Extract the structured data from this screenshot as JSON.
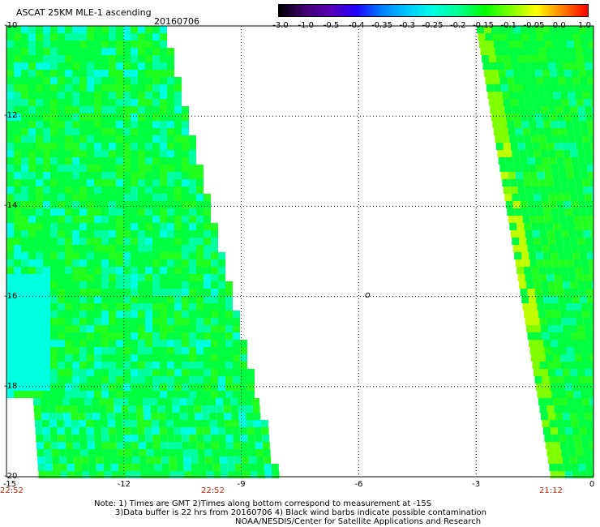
{
  "title": "ASCAT 25KM MLE-1 ascending",
  "date": "20160706",
  "colorbar": {
    "labels": [
      "-3.0",
      "-1.0",
      "-0.5",
      "-0.4",
      "-0.35",
      "-0.3",
      "-0.25",
      "-0.2",
      "-0.15",
      "-0.1",
      "-0.05",
      "0.0",
      "1.0"
    ],
    "colors": [
      "#000000",
      "#400070",
      "#5a00b4",
      "#2000ff",
      "#0080ff",
      "#00c8ff",
      "#00ffe0",
      "#00ff90",
      "#00ff00",
      "#7fff00",
      "#ffff00",
      "#ff8000",
      "#ff0000"
    ]
  },
  "map": {
    "lat_labels": [
      "-10",
      "-12",
      "-14",
      "-16",
      "-18",
      "-20"
    ],
    "lon_labels": [
      "-15",
      "-12",
      "-9",
      "-6",
      "-3",
      "0"
    ],
    "center_symbol": "o",
    "swath_colors": [
      "#00ff40",
      "#20ff20",
      "#00ffa0",
      "#00ffe0",
      "#80ff00",
      "#c0ff00"
    ],
    "times": {
      "left_bottom": "22:52",
      "mid_bottom": "22:52",
      "right_bottom": "21:12"
    }
  },
  "notes": {
    "line1": "Note: 1) Times are GMT 2)Times along bottom correspond to measurement at -15S",
    "line2": "3)Data buffer is 22 hrs from 20160706 4) Black wind barbs indicate possible contamination",
    "line3": "NOAA/NESDIS/Center for Satellite Applications and Research"
  }
}
